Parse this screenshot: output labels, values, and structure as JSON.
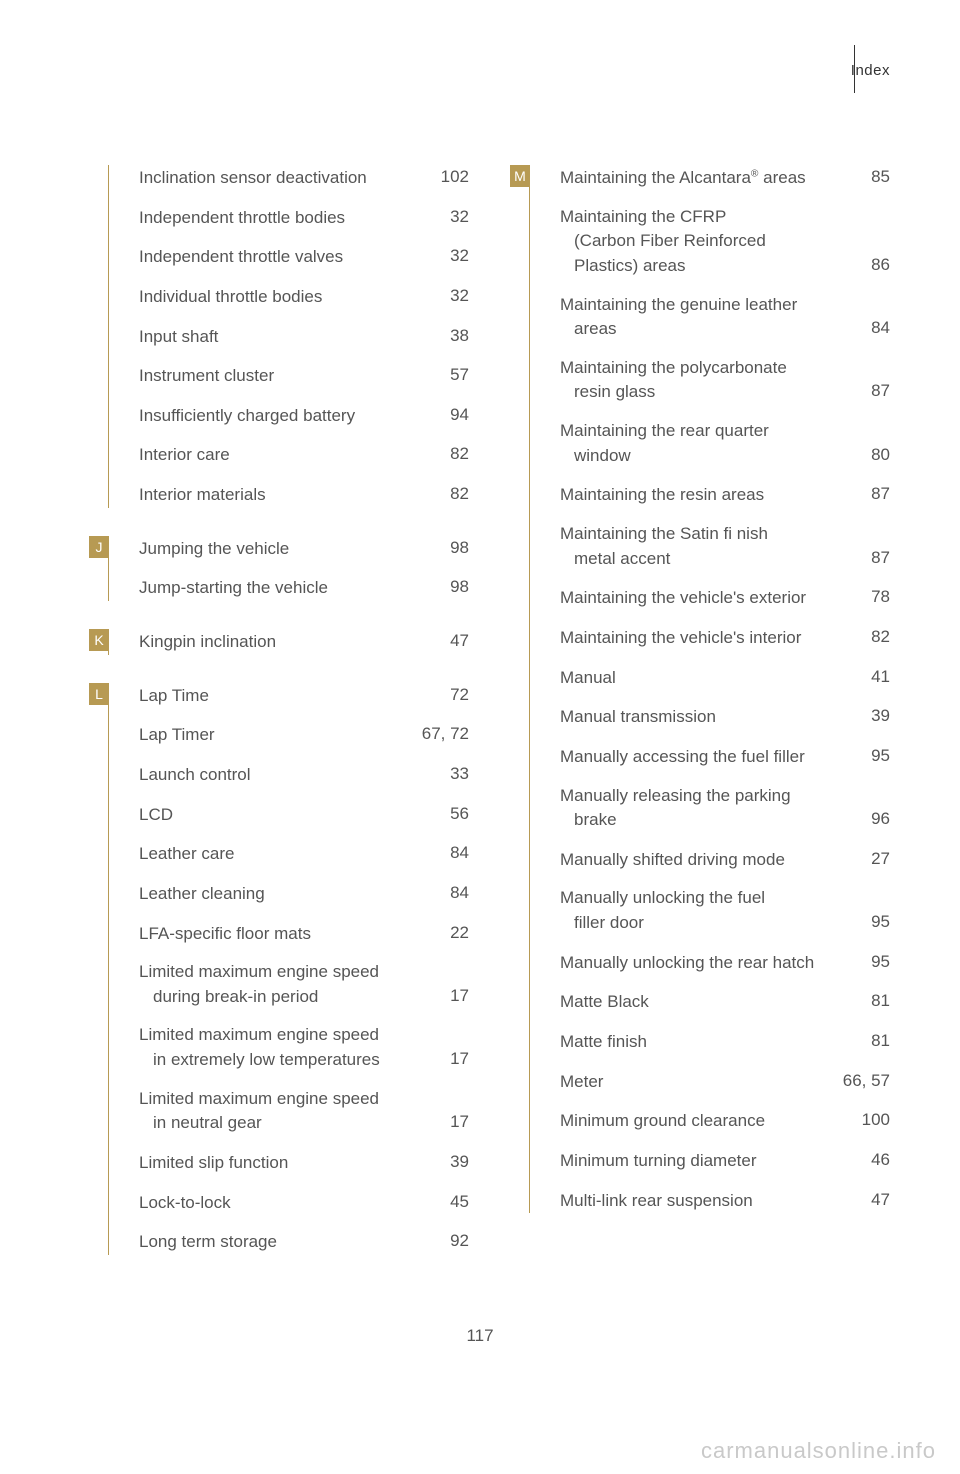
{
  "header": {
    "section_title": "Index"
  },
  "page_number": "117",
  "watermark": "carmanualsonline.info",
  "accent_color": "#b79a53",
  "left_column": [
    {
      "letter": "",
      "entries": [
        {
          "label": "Inclination sensor deactivation",
          "page": "102"
        },
        {
          "label": "Independent throttle bodies",
          "page": "32"
        },
        {
          "label": "Independent throttle valves",
          "page": "32"
        },
        {
          "label": "Individual throttle bodies",
          "page": "32"
        },
        {
          "label": "Input shaft",
          "page": "38"
        },
        {
          "label": "Instrument cluster",
          "page": "57"
        },
        {
          "label": "Insufficiently charged battery",
          "page": "94"
        },
        {
          "label": "Interior care",
          "page": "82"
        },
        {
          "label": "Interior materials",
          "page": "82"
        }
      ]
    },
    {
      "letter": "J",
      "entries": [
        {
          "label": "Jumping the vehicle",
          "page": "98"
        },
        {
          "label": "Jump-starting the vehicle",
          "page": "98"
        }
      ]
    },
    {
      "letter": "K",
      "entries": [
        {
          "label": "Kingpin inclination",
          "page": "47"
        }
      ]
    },
    {
      "letter": "L",
      "entries": [
        {
          "label": "Lap Time",
          "page": "72"
        },
        {
          "label": "Lap Timer",
          "page": "67, 72"
        },
        {
          "label": "Launch control",
          "page": "33"
        },
        {
          "label": "LCD",
          "page": "56"
        },
        {
          "label": "Leather care",
          "page": "84"
        },
        {
          "label": "Leather cleaning",
          "page": "84"
        },
        {
          "label": "LFA-specific floor mats",
          "page": "22"
        },
        {
          "label_line1": "Limited maximum engine speed",
          "label_line2": "during break-in period",
          "page": "17"
        },
        {
          "label_line1": "Limited maximum engine speed",
          "label_line2": "in extremely low temperatures",
          "page": "17"
        },
        {
          "label_line1": "Limited maximum engine speed",
          "label_line2": "in neutral gear",
          "page": "17"
        },
        {
          "label": "Limited slip function",
          "page": "39"
        },
        {
          "label": "Lock-to-lock",
          "page": "45"
        },
        {
          "label": "Long term storage",
          "page": "92"
        }
      ]
    }
  ],
  "right_column": [
    {
      "letter": "M",
      "entries": [
        {
          "label_html": "Maintaining the Alcantara<sup>®</sup> areas",
          "page": "85"
        },
        {
          "label_line1": "Maintaining the CFRP",
          "label_line2": "(Carbon Fiber Reinforced",
          "label_line3": "Plastics) areas",
          "page": "86"
        },
        {
          "label_line1": "Maintaining the genuine leather",
          "label_line2": "areas",
          "page": "84"
        },
        {
          "label_line1": "Maintaining the polycarbonate",
          "label_line2": "resin glass",
          "page": "87"
        },
        {
          "label_line1": "Maintaining the rear quarter",
          "label_line2": "window",
          "page": "80"
        },
        {
          "label": "Maintaining the resin areas",
          "page": "87"
        },
        {
          "label_line1": "Maintaining the Satin fi nish",
          "label_line2": "metal accent",
          "page": "87"
        },
        {
          "label": "Maintaining the vehicle's exterior",
          "page": "78"
        },
        {
          "label": "Maintaining the vehicle's interior",
          "page": "82"
        },
        {
          "label": "Manual",
          "page": "41"
        },
        {
          "label": "Manual transmission",
          "page": "39"
        },
        {
          "label": "Manually accessing the fuel filler",
          "page": "95"
        },
        {
          "label_line1": "Manually releasing the parking",
          "label_line2": "brake",
          "page": "96"
        },
        {
          "label": "Manually shifted driving mode",
          "page": "27"
        },
        {
          "label_line1": "Manually unlocking the fuel",
          "label_line2": "filler door",
          "page": "95"
        },
        {
          "label": "Manually unlocking the rear hatch",
          "page": "95"
        },
        {
          "label": "Matte Black",
          "page": "81"
        },
        {
          "label": "Matte finish",
          "page": "81"
        },
        {
          "label": "Meter",
          "page": "66, 57"
        },
        {
          "label": "Minimum ground clearance",
          "page": "100"
        },
        {
          "label": "Minimum turning diameter",
          "page": "46"
        },
        {
          "label": "Multi-link rear suspension",
          "page": "47"
        }
      ]
    }
  ]
}
